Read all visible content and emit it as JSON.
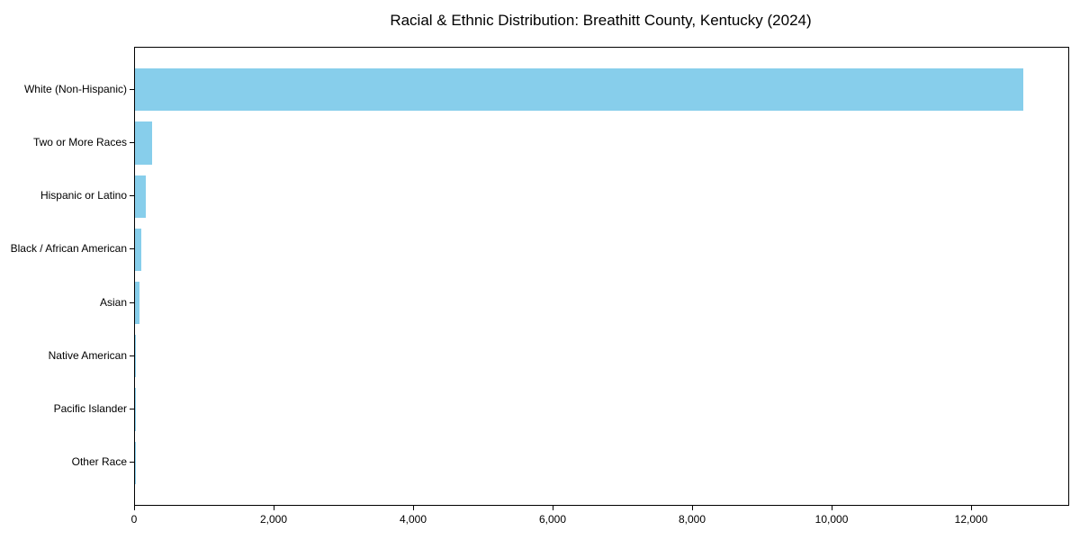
{
  "chart_data": {
    "type": "bar",
    "orientation": "horizontal",
    "title": "Racial & Ethnic Distribution: Breathitt County, Kentucky (2024)",
    "categories": [
      "White (Non-Hispanic)",
      "Two or More Races",
      "Hispanic or Latino",
      "Black / African American",
      "Asian",
      "Native American",
      "Pacific Islander",
      "Other Race"
    ],
    "values": [
      12730,
      250,
      155,
      88,
      62,
      14,
      5,
      2
    ],
    "xlabel": "",
    "ylabel": "",
    "xlim": [
      0,
      13380
    ],
    "x_ticks": [
      0,
      2000,
      4000,
      6000,
      8000,
      10000,
      12000
    ],
    "x_tick_labels": [
      "0",
      "2,000",
      "4,000",
      "6,000",
      "8,000",
      "10,000",
      "12,000"
    ],
    "bar_color": "#87CEEB",
    "background_color": "#FFFFFF",
    "spine_color": "#000000",
    "grid": false,
    "legend_position": "none",
    "largest_category_on_top": true
  }
}
